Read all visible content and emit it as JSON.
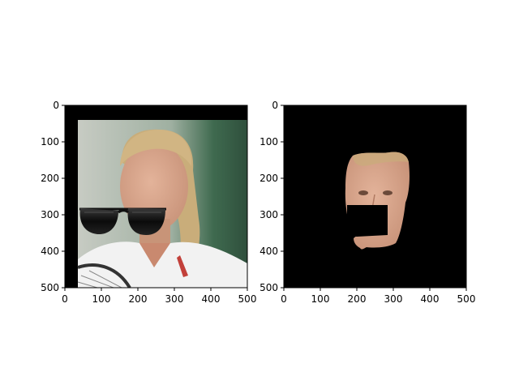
{
  "figure": {
    "panels": [
      {
        "name": "left",
        "content": "face photo with sunglasses overlay",
        "xlim": [
          0,
          500
        ],
        "ylim": [
          500,
          0
        ],
        "xticks": [
          "0",
          "100",
          "200",
          "300",
          "400",
          "500"
        ],
        "yticks": [
          "0",
          "100",
          "200",
          "300",
          "400",
          "500"
        ]
      },
      {
        "name": "right",
        "content": "segmented face mask on black",
        "xlim": [
          0,
          500
        ],
        "ylim": [
          500,
          0
        ],
        "xticks": [
          "0",
          "100",
          "200",
          "300",
          "400",
          "500"
        ],
        "yticks": [
          "0",
          "100",
          "200",
          "300",
          "400",
          "500"
        ]
      }
    ],
    "colors": {
      "background": "#ffffff",
      "image_black": "#000000",
      "skin": "#d8a58a",
      "hair": "#c9ad7a",
      "sunglasses": "#111111",
      "backdrop_green": "#3f6a4f",
      "backdrop_light": "#c9cbc6",
      "shirt": "#f2f2f2"
    }
  }
}
